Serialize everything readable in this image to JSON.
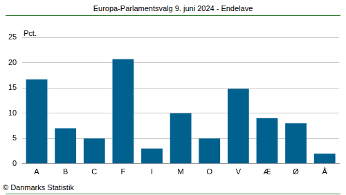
{
  "chart_data": {
    "type": "bar",
    "title": "Europa-Parlamentsvalg 9. juni 2024 - Endelave",
    "ylabel": "Pct.",
    "source": "© Danmarks Statistik",
    "categories": [
      "A",
      "B",
      "C",
      "F",
      "I",
      "M",
      "O",
      "V",
      "Æ",
      "Ø",
      "Å"
    ],
    "values": [
      16.7,
      7.0,
      5.0,
      20.7,
      3.0,
      10.0,
      5.0,
      14.8,
      9.0,
      8.0,
      2.0
    ],
    "color": "#00618f",
    "ylim": [
      0,
      25
    ],
    "yticks": [
      0,
      5,
      10,
      15,
      20,
      25
    ],
    "grid": true
  }
}
